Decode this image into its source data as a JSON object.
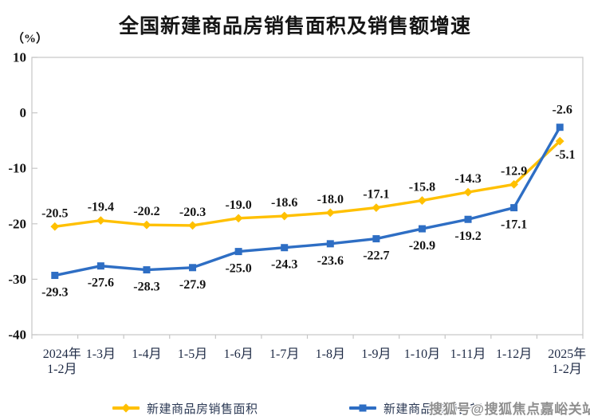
{
  "title": "全国新建商品房销售面积及销售额增速",
  "y_axis_unit": "（%）",
  "watermark": "搜狐号@搜狐焦点嘉峪关站",
  "colors": {
    "area_series": "#FFC000",
    "amount_series": "#2E6EC4",
    "axis_line": "#c6c6c6",
    "label_text": "#141414",
    "category_text": "#1e2a45"
  },
  "legend": {
    "position": "bottom",
    "items": [
      {
        "label": "新建商品房销售面积",
        "marker": "diamond",
        "color": "#FFC000"
      },
      {
        "label": "新建商品房销售额",
        "marker": "square",
        "color": "#2E6EC4"
      }
    ]
  },
  "chart_data": {
    "type": "line",
    "title": "全国新建商品房销售面积及销售额增速",
    "ylabel": "（%）",
    "ylim": [
      -40,
      10
    ],
    "yticks": [
      10,
      0,
      -10,
      -20,
      -30,
      -40
    ],
    "grid": false,
    "legend_position": "bottom",
    "categories": [
      [
        "2024年",
        "1-2月"
      ],
      [
        "1-3月"
      ],
      [
        "1-4月"
      ],
      [
        "1-5月"
      ],
      [
        "1-6月"
      ],
      [
        "1-7月"
      ],
      [
        "1-8月"
      ],
      [
        "1-9月"
      ],
      [
        "1-10月"
      ],
      [
        "1-11月"
      ],
      [
        "1-12月"
      ],
      [
        "2025年",
        "1-2月"
      ]
    ],
    "series": [
      {
        "name": "新建商品房销售面积",
        "color": "#FFC000",
        "marker": "diamond",
        "label_position": "above",
        "values": [
          -20.5,
          -19.4,
          -20.2,
          -20.3,
          -19.0,
          -18.6,
          -18.0,
          -17.1,
          -15.8,
          -14.3,
          -12.9,
          -5.1
        ]
      },
      {
        "name": "新建商品房销售额",
        "color": "#2E6EC4",
        "marker": "square",
        "label_position": "below",
        "values": [
          -29.3,
          -27.6,
          -28.3,
          -27.9,
          -25.0,
          -24.3,
          -23.6,
          -22.7,
          -20.9,
          -19.2,
          -17.1,
          -2.6
        ]
      }
    ]
  }
}
